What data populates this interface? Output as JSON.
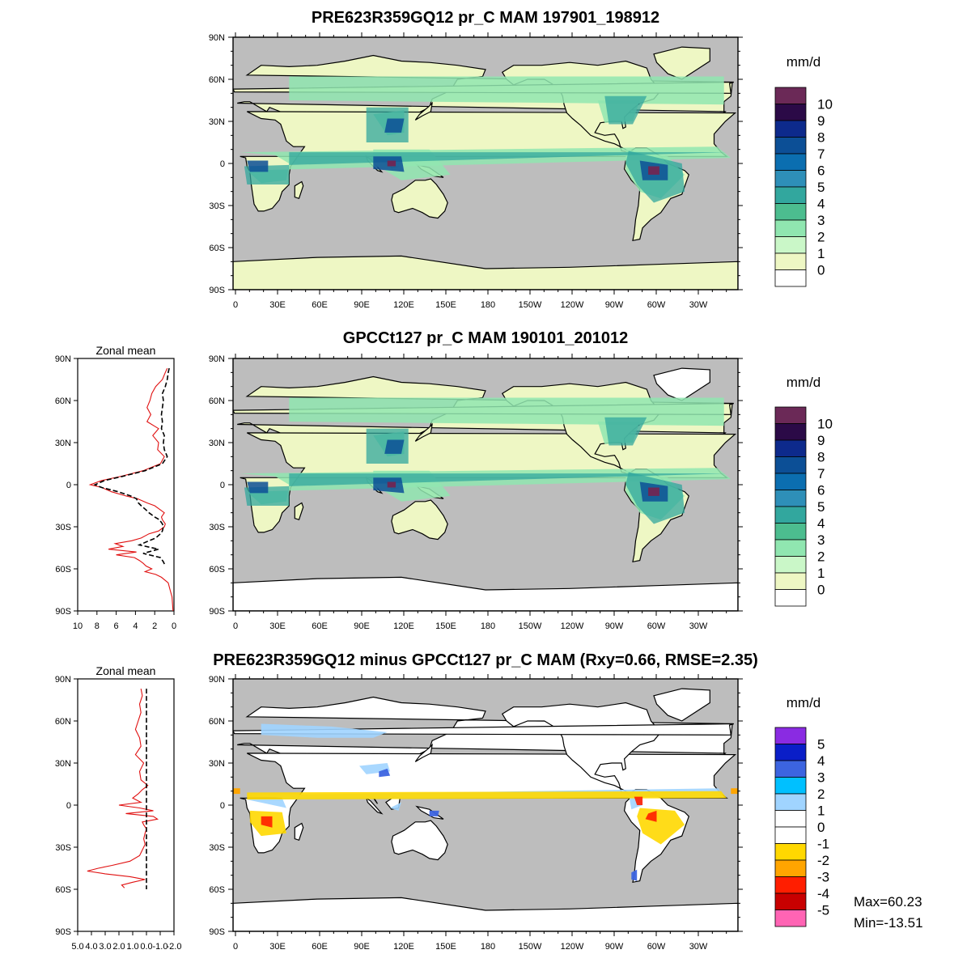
{
  "chart_data": [
    {
      "type": "map",
      "title": "PRE623R359GQ12 pr_C MAM 197901_198912",
      "lat_ticks": [
        "90N",
        "60N",
        "30N",
        "0",
        "30S",
        "60S",
        "90S"
      ],
      "lon_ticks": [
        "0",
        "30E",
        "60E",
        "90E",
        "120E",
        "150E",
        "180",
        "150W",
        "120W",
        "90W",
        "60W",
        "30W"
      ],
      "colorbar": {
        "unit": "mm/d",
        "labels": [
          "10",
          "9",
          "8",
          "7",
          "6",
          "5",
          "4",
          "3",
          "2",
          "1",
          "0"
        ],
        "colors": [
          "#6b2957",
          "#2b0a47",
          "#0d2a8c",
          "#0c4f96",
          "#0b6eb0",
          "#2e8fb8",
          "#32a79e",
          "#4cbd8f",
          "#90e6b0",
          "#caf7c8",
          "#eef7c4",
          "#ffffff"
        ]
      }
    },
    {
      "type": "map",
      "title": "GPCCt127 pr_C MAM 190101_201012",
      "lat_ticks": [
        "90N",
        "60N",
        "30N",
        "0",
        "30S",
        "60S",
        "90S"
      ],
      "lon_ticks": [
        "0",
        "30E",
        "60E",
        "90E",
        "120E",
        "150E",
        "180",
        "150W",
        "120W",
        "90W",
        "60W",
        "30W"
      ],
      "colorbar": {
        "unit": "mm/d",
        "labels": [
          "10",
          "9",
          "8",
          "7",
          "6",
          "5",
          "4",
          "3",
          "2",
          "1",
          "0"
        ],
        "colors": [
          "#6b2957",
          "#2b0a47",
          "#0d2a8c",
          "#0c4f96",
          "#0b6eb0",
          "#2e8fb8",
          "#32a79e",
          "#4cbd8f",
          "#90e6b0",
          "#caf7c8",
          "#eef7c4",
          "#ffffff"
        ]
      },
      "zonal_mean": {
        "title": "Zonal mean",
        "x_ticks": [
          "10",
          "8",
          "6",
          "4",
          "2",
          "0"
        ],
        "xlim": [
          10,
          0
        ],
        "lat_ticks": [
          "90N",
          "60N",
          "30N",
          "0",
          "30S",
          "60S",
          "90S"
        ],
        "series": [
          {
            "color": "#e01010",
            "style": "solid",
            "lat": [
              83,
              80,
              75,
              70,
              65,
              60,
              55,
              50,
              45,
              40,
              35,
              30,
              25,
              20,
              15,
              10,
              6,
              3,
              0,
              -2,
              -5,
              -8,
              -10,
              -13,
              -15,
              -18,
              -20,
              -23,
              -25,
              -28,
              -30,
              -33,
              -35,
              -38,
              -40,
              -42,
              -44,
              -46,
              -48,
              -50,
              -52,
              -54,
              -56,
              -58,
              -60,
              -62,
              -64,
              -66,
              -70,
              -75,
              -80,
              -85,
              -90
            ],
            "val": [
              0.7,
              0.9,
              1.2,
              1.9,
              2.3,
              2.5,
              2.8,
              2.4,
              2.8,
              1.6,
              2.2,
              1.6,
              1.7,
              1.0,
              1.4,
              3.2,
              5.5,
              7.5,
              8.7,
              7.5,
              6.5,
              5.0,
              3.8,
              2.8,
              2.0,
              1.4,
              1.0,
              1.3,
              1.2,
              0.9,
              1.0,
              1.6,
              2.6,
              3.4,
              4.4,
              6.1,
              5.3,
              6.8,
              3.9,
              6.0,
              4.1,
              3.6,
              3.2,
              2.9,
              2.3,
              3.0,
              1.9,
              1.3,
              0.6,
              0.4,
              0.2,
              0.15,
              0.1
            ]
          },
          {
            "color": "#000000",
            "style": "dashed",
            "lat": [
              83,
              80,
              75,
              70,
              65,
              60,
              55,
              50,
              45,
              40,
              35,
              30,
              25,
              20,
              15,
              10,
              6,
              3,
              0,
              -2,
              -5,
              -8,
              -10,
              -13,
              -15,
              -18,
              -20,
              -23,
              -25,
              -28,
              -30,
              -33,
              -35,
              -38,
              -40,
              -43,
              -46,
              -49,
              -52,
              -55,
              -58
            ],
            "val": [
              0.5,
              0.6,
              0.7,
              0.9,
              1.2,
              1.1,
              1.2,
              1.3,
              1.2,
              1.3,
              1.0,
              1.1,
              1.0,
              0.7,
              1.2,
              3.0,
              5.3,
              7.2,
              8.2,
              7.5,
              5.8,
              4.5,
              3.9,
              3.7,
              3.4,
              2.9,
              2.6,
              2.0,
              1.5,
              1.2,
              1.1,
              1.2,
              1.4,
              1.9,
              2.6,
              3.6,
              1.6,
              3.2,
              1.4,
              1.1,
              0.9
            ]
          }
        ]
      }
    },
    {
      "type": "map",
      "title": "PRE623R359GQ12 minus GPCCt127 pr_C MAM (Rxy=0.66, RMSE=2.35)",
      "lat_ticks": [
        "90N",
        "60N",
        "30N",
        "0",
        "30S",
        "60S",
        "90S"
      ],
      "lon_ticks": [
        "0",
        "30E",
        "60E",
        "90E",
        "120E",
        "150E",
        "180",
        "150W",
        "120W",
        "90W",
        "60W",
        "30W"
      ],
      "colorbar": {
        "unit": "mm/d",
        "labels": [
          "5",
          "4",
          "3",
          "2",
          "1",
          "0",
          "-1",
          "-2",
          "-3",
          "-4",
          "-5"
        ],
        "colors": [
          "#8a2be2",
          "#0a1ec8",
          "#3c64e0",
          "#00c0ff",
          "#a0d4ff",
          "#ffffff",
          "#ffffff",
          "#ffd800",
          "#ffa500",
          "#ff1e00",
          "#c80000",
          "#ff64b4"
        ]
      },
      "stats": {
        "max": "Max=60.23",
        "min": "Min=-13.51"
      },
      "zonal_mean": {
        "title": "Zonal mean",
        "x_ticks": [
          "5.0",
          "4.0",
          "3.0",
          "2.0",
          "1.0",
          "0.0",
          "-1.0",
          "-2.0"
        ],
        "xlim": [
          5,
          -2
        ],
        "lat_ticks": [
          "90N",
          "60N",
          "30N",
          "0",
          "30S",
          "60S",
          "90S"
        ],
        "series": [
          {
            "color": "#e01010",
            "style": "solid",
            "lat": [
              83,
              78,
              72,
              66,
              60,
              54,
              48,
              42,
              36,
              30,
              24,
              18,
              14,
              11,
              8,
              5,
              2,
              0,
              -2,
              -4,
              -6,
              -8,
              -10,
              -12,
              -14,
              -17,
              -20,
              -24,
              -28,
              -32,
              -36,
              -40,
              -43,
              -45,
              -47,
              -49,
              -51,
              -53,
              -55,
              -57,
              -59
            ],
            "val": [
              0.4,
              0.3,
              0.5,
              0.4,
              0.6,
              0.8,
              0.5,
              0.4,
              0.8,
              0.2,
              0.5,
              0.4,
              -0.1,
              0.3,
              0.6,
              1.0,
              0.4,
              2.0,
              0.5,
              -0.5,
              1.5,
              -0.5,
              -0.8,
              0.3,
              0.2,
              0.0,
              0.1,
              0.2,
              0.1,
              0.3,
              0.5,
              1.2,
              2.5,
              3.5,
              4.3,
              3.0,
              1.2,
              0.1,
              1.0,
              1.8,
              1.6
            ]
          },
          {
            "color": "#000000",
            "style": "dashed",
            "lat": [
              83,
              -60
            ],
            "val": [
              0,
              0
            ]
          }
        ]
      }
    }
  ]
}
